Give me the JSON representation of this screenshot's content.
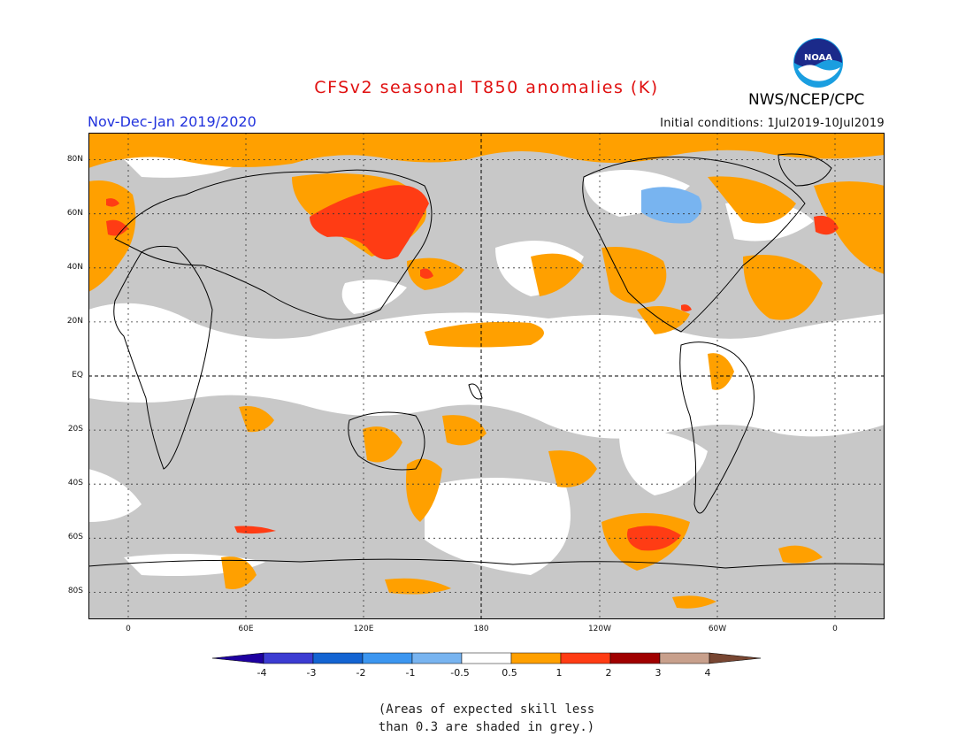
{
  "header": {
    "title": "CFSv2 seasonal T850 anomalies (K)",
    "period": "Nov-Dec-Jan 2019/2020",
    "initial_conditions": "Initial conditions: 1Jul2019-10Jul2019",
    "agency": "NWS/NCEP/CPC",
    "logo_text": "NOAA"
  },
  "map": {
    "lat_labels": [
      "80N",
      "60N",
      "40N",
      "20N",
      "EQ",
      "20S",
      "40S",
      "60S",
      "80S"
    ],
    "lon_labels": [
      "0",
      "60E",
      "120E",
      "180",
      "120W",
      "60W",
      "0"
    ],
    "colors": {
      "grey_skill": "#c8c8c8",
      "ocean_white": "#ffffff",
      "anom_0_5_1": "#ffa000",
      "anom_1_2": "#ff3c14",
      "anom_neg_0_5_1": "#78b4f0"
    }
  },
  "colorbar": {
    "labels": [
      "-4",
      "-3",
      "-2",
      "-1",
      "-0.5",
      "0.5",
      "1",
      "2",
      "3",
      "4"
    ],
    "colors": [
      "#1e00a0",
      "#3c3cd2",
      "#1464d2",
      "#3c96f0",
      "#78b4f0",
      "#ffffff",
      "#ffa000",
      "#ff3c14",
      "#a00000",
      "#c8a08c",
      "#784632"
    ]
  },
  "note": {
    "line1": "(Areas of expected skill less",
    "line2": "than 0.3 are shaded in grey.)"
  }
}
